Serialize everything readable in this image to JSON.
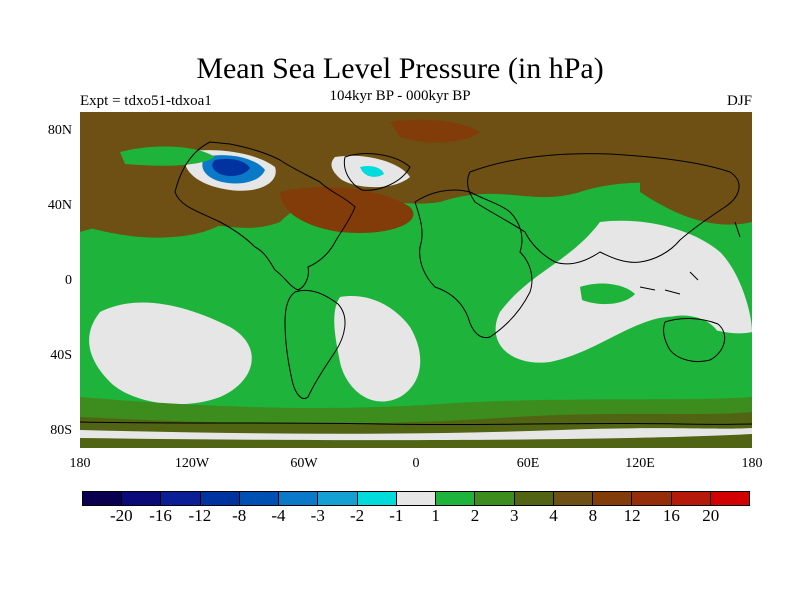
{
  "title": "Mean Sea Level Pressure (in hPa)",
  "experiment": "Expt = tdxo51-tdxoa1",
  "period": "104kyr BP - 000kyr BP",
  "season": "DJF",
  "y_axis_labels": [
    "80N",
    "40N",
    "0",
    "40S",
    "80S"
  ],
  "x_axis_labels": [
    "180",
    "120W",
    "60W",
    "0",
    "60E",
    "120E",
    "180"
  ],
  "colorbar": {
    "colors": [
      "#0a0050",
      "#0a0a78",
      "#0a1e96",
      "#0032a0",
      "#0050b4",
      "#0a7ac8",
      "#14a0d2",
      "#00dcdc",
      "#e6e6e6",
      "#1eb43c",
      "#3c8c1e",
      "#506414",
      "#6e5014",
      "#823c0a",
      "#962d0a",
      "#b4190a",
      "#d20000"
    ],
    "labels": [
      "-20",
      "-16",
      "-12",
      "-8",
      "-4",
      "-3",
      "-2",
      "-1",
      "1",
      "2",
      "3",
      "4",
      "8",
      "12",
      "16",
      "20"
    ]
  },
  "map_colors": {
    "ocean_green": "#1eb43c",
    "dark_green": "#3c8c1e",
    "olive": "#506414",
    "brown": "#6e5014",
    "dark_brown": "#823c0a",
    "near_zero": "#e6e6e6",
    "cyan": "#00dcdc",
    "blue": "#0a7ac8",
    "dark_blue": "#0032a0"
  }
}
